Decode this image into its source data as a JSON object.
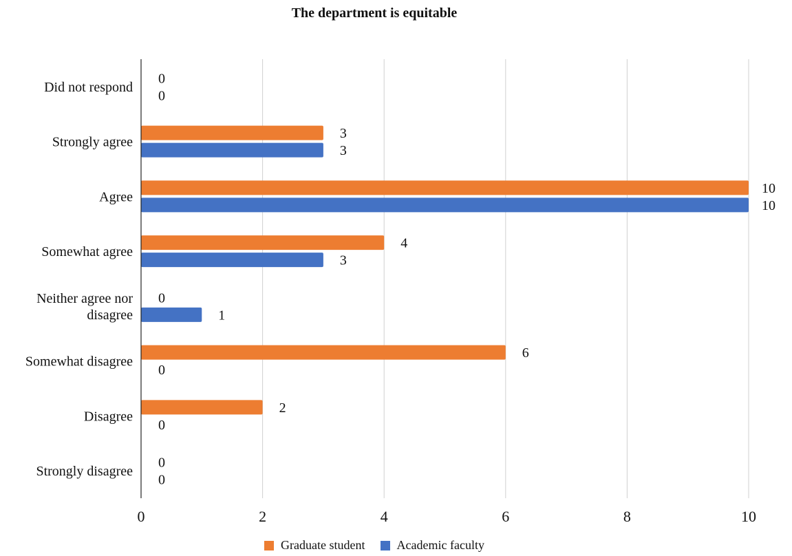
{
  "chart_data": {
    "type": "bar",
    "orientation": "horizontal",
    "title": "The department is equitable",
    "xlabel": "",
    "ylabel": "",
    "categories": [
      "Did not respond",
      "Strongly agree",
      "Agree",
      "Somewhat agree",
      "Neither agree nor disagree",
      "Somewhat disagree",
      "Disagree",
      "Strongly disagree"
    ],
    "series": [
      {
        "name": "Graduate student",
        "color": "#ED7D31",
        "values": [
          0,
          3,
          10,
          4,
          0,
          6,
          2,
          0
        ]
      },
      {
        "name": "Academic faculty",
        "color": "#4472C4",
        "values": [
          0,
          3,
          10,
          3,
          1,
          0,
          0,
          0
        ]
      }
    ],
    "xlim": [
      0,
      10
    ],
    "xticks": [
      0,
      2,
      4,
      6,
      8,
      10
    ],
    "grid": true,
    "legend": "bottom",
    "data_labels": true
  }
}
